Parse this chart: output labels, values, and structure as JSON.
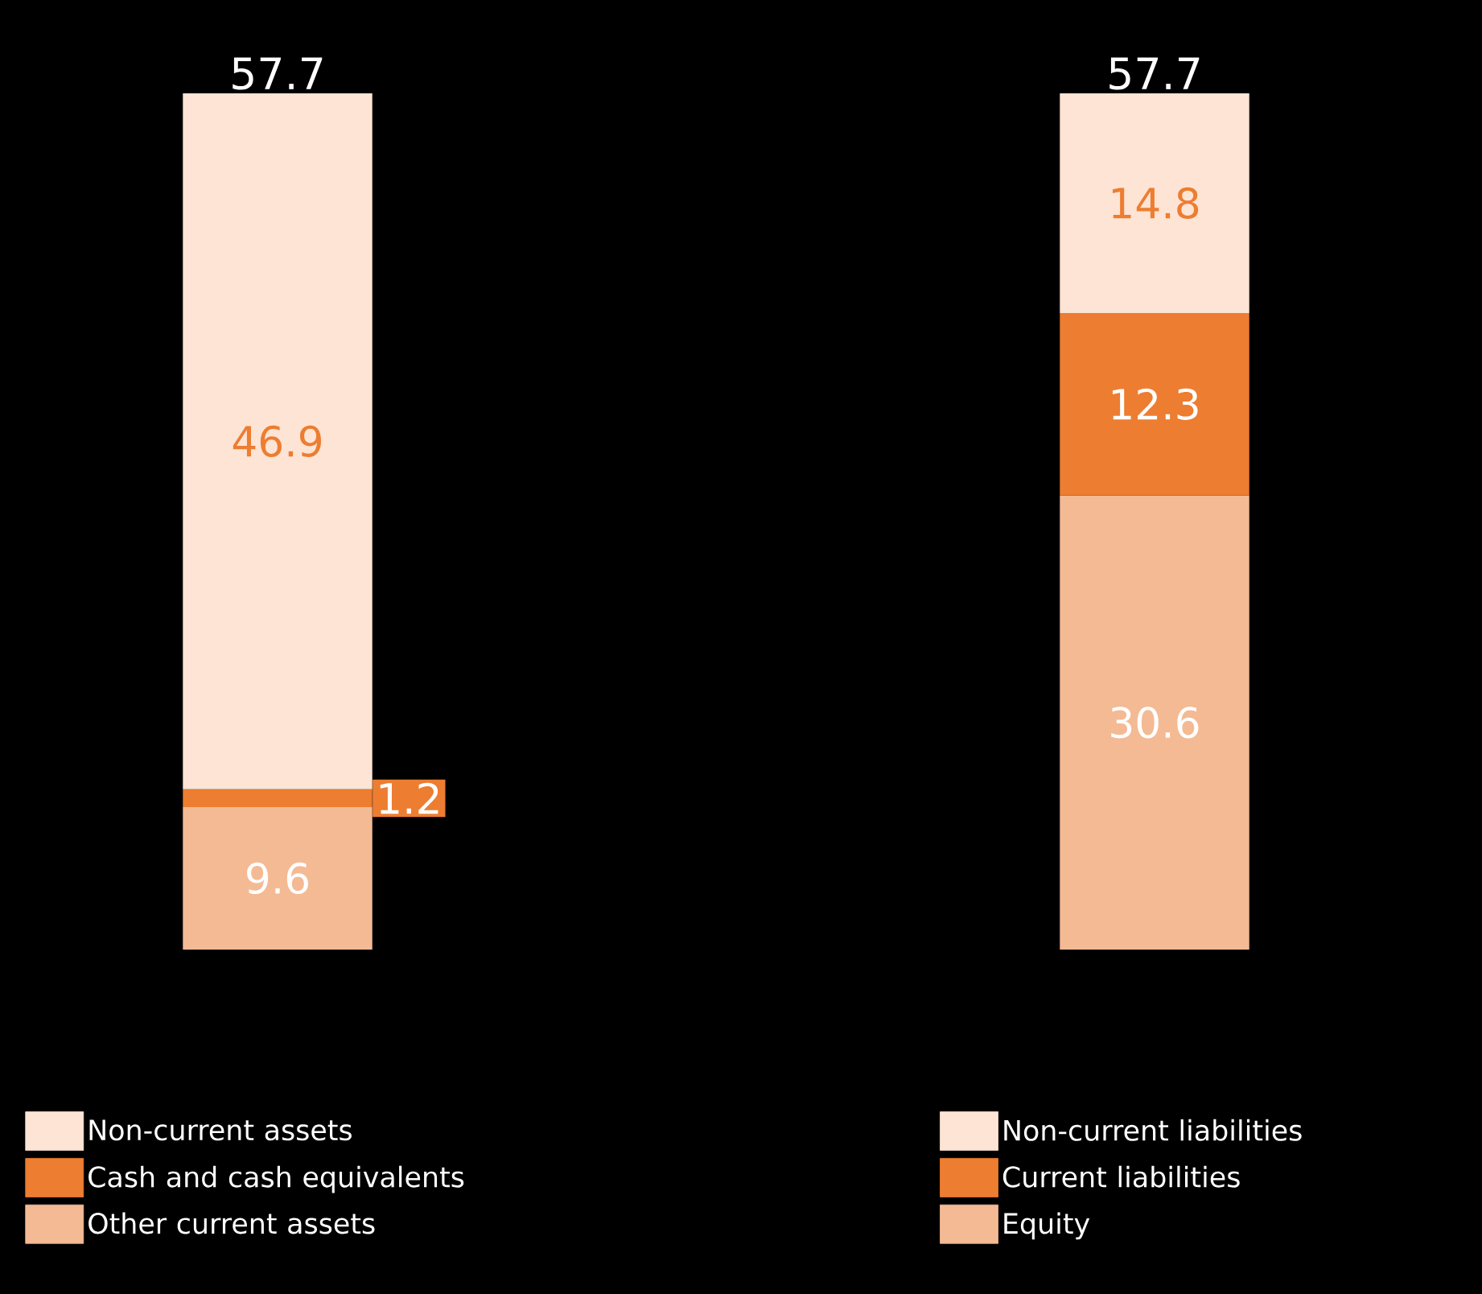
{
  "chart_data": {
    "type": "bar",
    "stacked": true,
    "categories": [
      null,
      null
    ],
    "series": [
      {
        "name": "Other current assets",
        "color": "#f4ba94",
        "values": [
          9.6,
          null
        ]
      },
      {
        "name": "Cash and cash equivalents",
        "color": "#ed7d31",
        "values": [
          1.2,
          null
        ]
      },
      {
        "name": "Non-current assets",
        "color": "#fde4d4",
        "values": [
          46.9,
          null
        ]
      },
      {
        "name": "Equity",
        "color": "#f4ba94",
        "values": [
          null,
          30.6
        ]
      },
      {
        "name": "Current liabilities",
        "color": "#ed7d31",
        "values": [
          null,
          12.3
        ]
      },
      {
        "name": "Non-current liabilities",
        "color": "#fde4d4",
        "values": [
          null,
          14.8
        ]
      }
    ],
    "data_labels": true,
    "totals": [
      "57.7",
      "57.7"
    ],
    "legend": "bottom"
  }
}
